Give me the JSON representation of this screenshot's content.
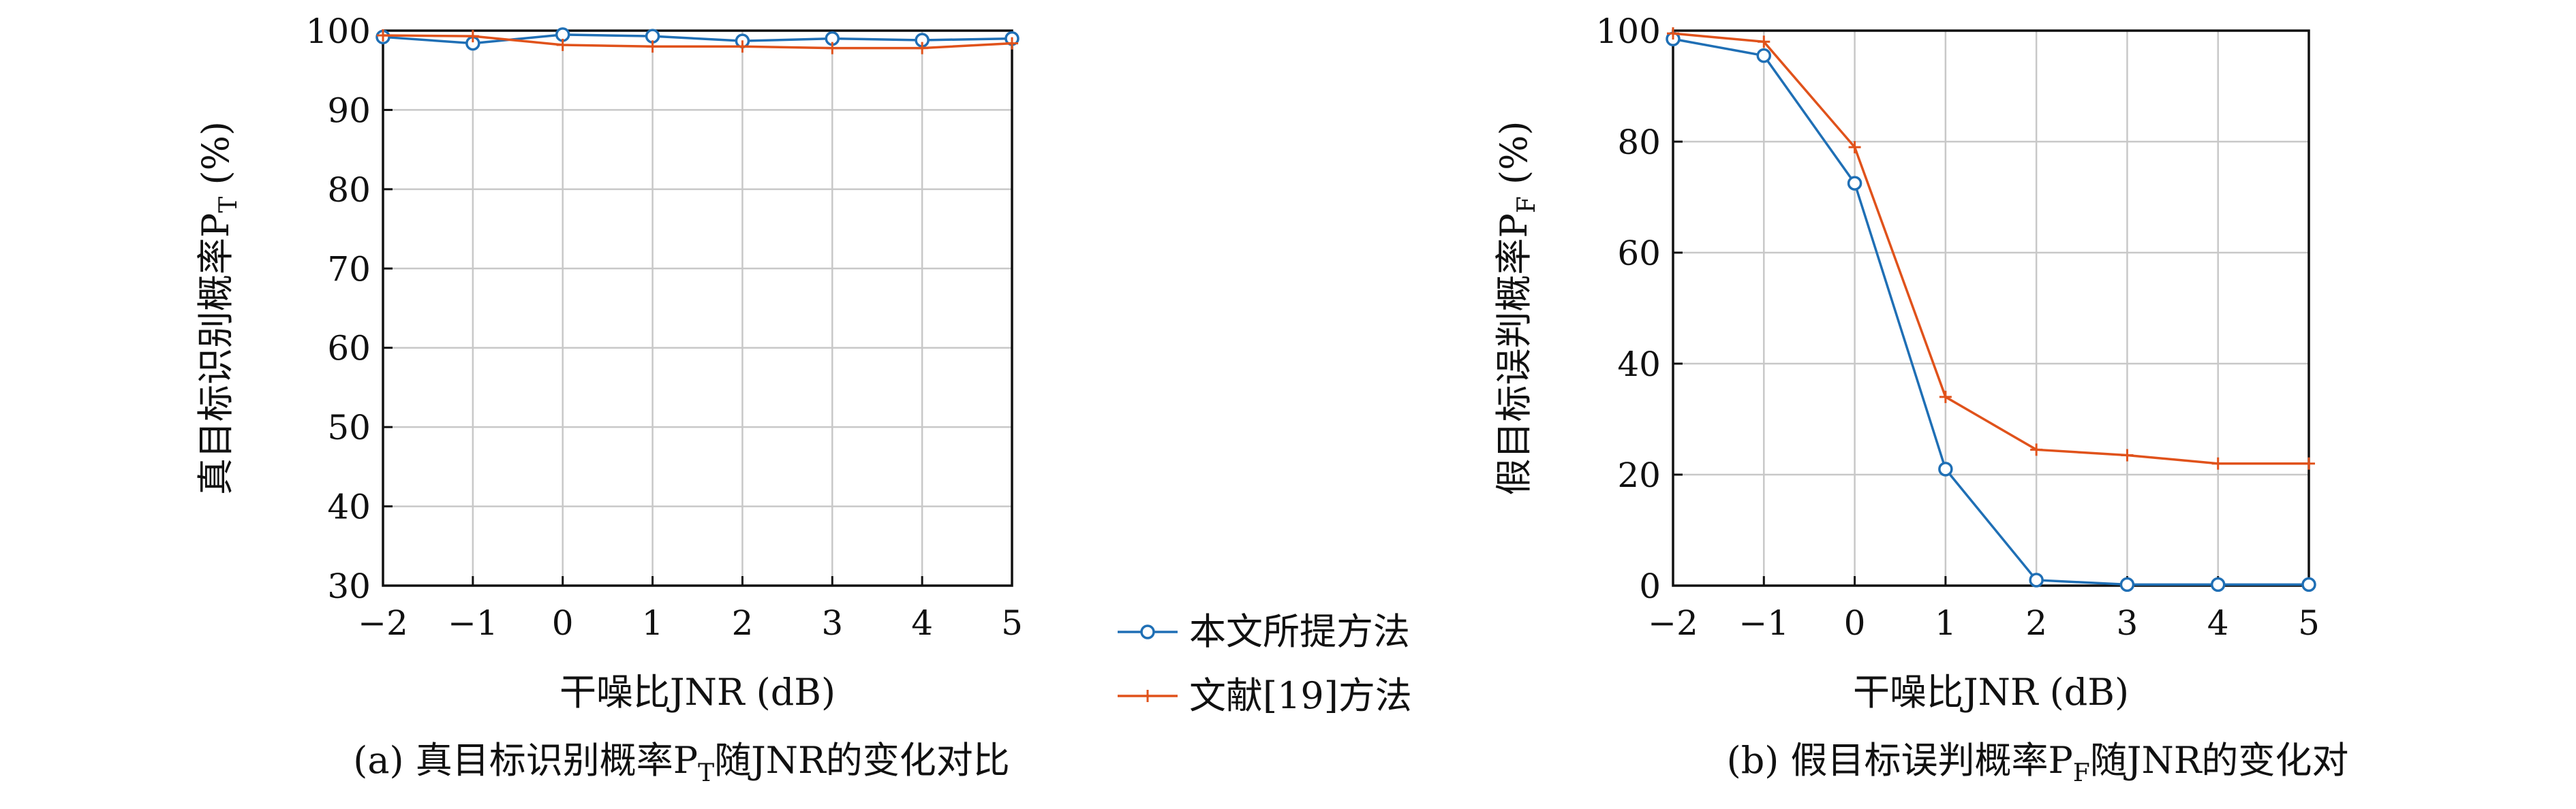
{
  "colors": {
    "series_ours": "#1f6fb5",
    "series_ref": "#e0521b",
    "grid": "#c8c8c8",
    "axis": "#111111"
  },
  "legend": {
    "items": [
      {
        "label": "本文所提方法",
        "marker": "circle",
        "color": "#1f6fb5"
      },
      {
        "label": "文献[19]方法",
        "marker": "plus",
        "color": "#e0521b"
      }
    ]
  },
  "chart_data": [
    {
      "type": "line",
      "caption": "(a) 真目标识别概率P",
      "caption_sub": "T",
      "caption_tail": "随JNR的变化对比",
      "xlabel": "干噪比JNR (dB)",
      "ylabel": "真目标识别概率P",
      "ylabel_sub": "T",
      "ylabel_unit": " (%)",
      "x": [
        -2,
        -1,
        0,
        1,
        2,
        3,
        4,
        5
      ],
      "xlim": [
        -2,
        5
      ],
      "ylim": [
        30,
        100
      ],
      "yticks": [
        30,
        40,
        50,
        60,
        70,
        80,
        90,
        100
      ],
      "xticks": [
        "−2",
        "−1",
        "0",
        "1",
        "2",
        "3",
        "4",
        "5"
      ],
      "grid": true,
      "series": [
        {
          "name": "本文所提方法",
          "marker": "circle",
          "values": [
            99.2,
            98.4,
            99.5,
            99.3,
            98.7,
            99.0,
            98.8,
            99.0
          ]
        },
        {
          "name": "文献[19]方法",
          "marker": "plus",
          "values": [
            99.4,
            99.3,
            98.2,
            98.0,
            98.0,
            97.8,
            97.8,
            98.4
          ]
        }
      ]
    },
    {
      "type": "line",
      "caption": "(b) 假目标误判概率P",
      "caption_sub": "F",
      "caption_tail": "随JNR的变化对",
      "xlabel": "干噪比JNR (dB)",
      "ylabel": "假目标误判概率P",
      "ylabel_sub": "F",
      "ylabel_unit": " (%)",
      "x": [
        -2,
        -1,
        0,
        1,
        2,
        3,
        4,
        5
      ],
      "xlim": [
        -2,
        5
      ],
      "ylim": [
        0,
        100
      ],
      "yticks": [
        0,
        20,
        40,
        60,
        80,
        100
      ],
      "xticks": [
        "−2",
        "−1",
        "0",
        "1",
        "2",
        "3",
        "4",
        "5"
      ],
      "grid": true,
      "series": [
        {
          "name": "本文所提方法",
          "marker": "circle",
          "values": [
            98.5,
            95.5,
            72.5,
            21.0,
            1.0,
            0.2,
            0.2,
            0.2
          ]
        },
        {
          "name": "文献[19]方法",
          "marker": "plus",
          "values": [
            99.5,
            98.0,
            79.0,
            34.0,
            24.5,
            23.5,
            22.0,
            22.0
          ]
        }
      ]
    }
  ]
}
